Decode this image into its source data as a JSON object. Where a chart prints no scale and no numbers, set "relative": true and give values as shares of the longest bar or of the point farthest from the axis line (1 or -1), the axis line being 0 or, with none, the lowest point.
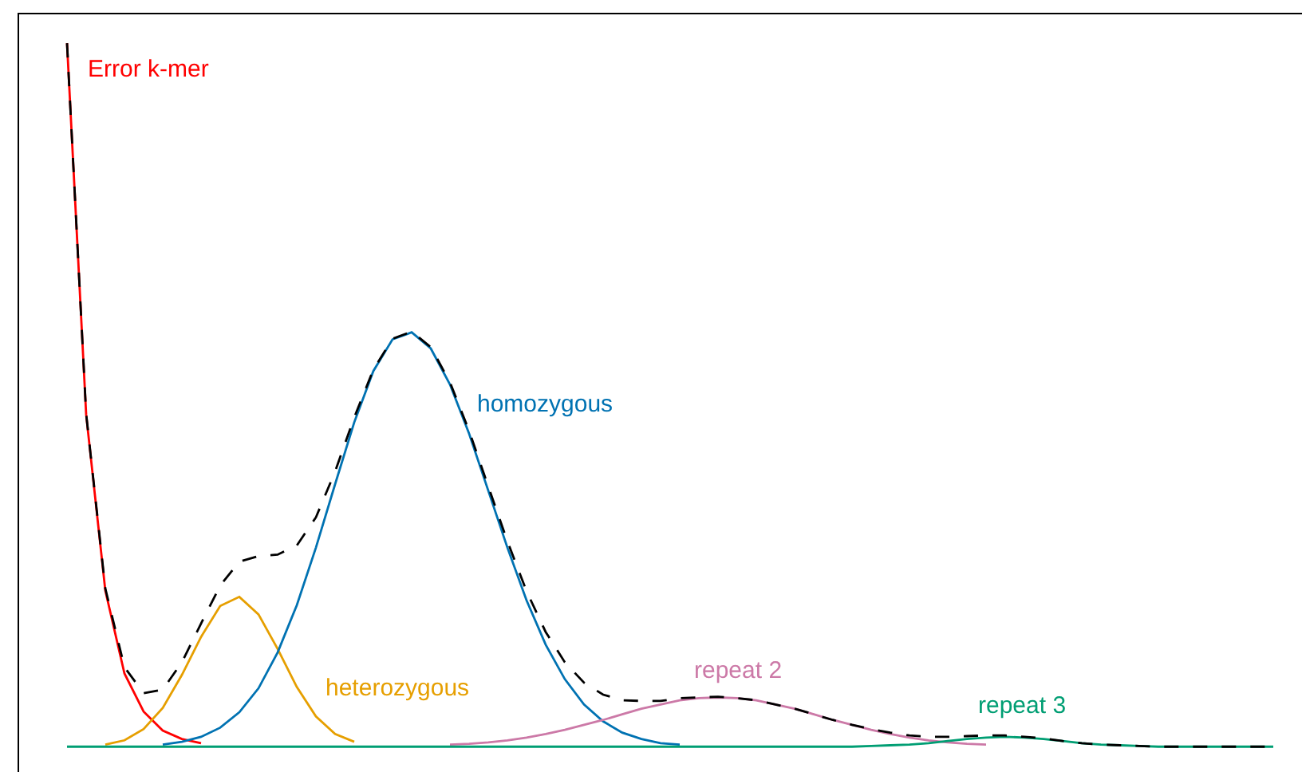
{
  "chart_data": {
    "type": "line",
    "relative": true,
    "legend": false,
    "grid": false,
    "marker": "none",
    "line_style": "solid",
    "categories": [
      null,
      null,
      null,
      null,
      null,
      null,
      null,
      null,
      null,
      null,
      null,
      null,
      null,
      null,
      null,
      null,
      null,
      null,
      null,
      null,
      null,
      null,
      null,
      null,
      null,
      null,
      null,
      null,
      null,
      null,
      null,
      null,
      null,
      null,
      null,
      null,
      null,
      null,
      null,
      null,
      null,
      null,
      null,
      null,
      null,
      null,
      null,
      null,
      null,
      null,
      null,
      null,
      null,
      null,
      null,
      null,
      null,
      null,
      null,
      null,
      null,
      null,
      null,
      null
    ],
    "series": [
      {
        "name": "Error k-mer",
        "color": "#ff0000",
        "values": [
          1.0,
          0.472,
          0.222,
          0.104,
          0.05,
          0.023,
          0.011,
          0.005,
          null,
          null,
          null,
          null,
          null,
          null,
          null,
          null,
          null,
          null,
          null,
          null,
          null,
          null,
          null,
          null,
          null,
          null,
          null,
          null,
          null,
          null,
          null,
          null,
          null,
          null,
          null,
          null,
          null,
          null,
          null,
          null,
          null,
          null,
          null,
          null,
          null,
          null,
          null,
          null,
          null,
          null,
          null,
          null,
          null,
          null,
          null,
          null,
          null,
          null,
          null,
          null,
          null,
          null,
          null,
          null
        ]
      },
      {
        "name": "heterozygous",
        "color": "#e69f00",
        "values": [
          null,
          null,
          0.003,
          0.009,
          0.025,
          0.055,
          0.102,
          0.156,
          0.2,
          0.213,
          0.188,
          0.139,
          0.085,
          0.043,
          0.018,
          0.007,
          null,
          null,
          null,
          null,
          null,
          null,
          null,
          null,
          null,
          null,
          null,
          null,
          null,
          null,
          null,
          null,
          null,
          null,
          null,
          null,
          null,
          null,
          null,
          null,
          null,
          null,
          null,
          null,
          null,
          null,
          null,
          null,
          null,
          null,
          null,
          null,
          null,
          null,
          null,
          null,
          null,
          null,
          null,
          null,
          null,
          null,
          null,
          null
        ]
      },
      {
        "name": "homozygous",
        "color": "#0072b2",
        "values": [
          null,
          null,
          null,
          null,
          null,
          0.003,
          0.007,
          0.014,
          0.027,
          0.049,
          0.083,
          0.134,
          0.201,
          0.283,
          0.373,
          0.461,
          0.534,
          0.579,
          0.589,
          0.566,
          0.515,
          0.445,
          0.364,
          0.283,
          0.208,
          0.145,
          0.096,
          0.06,
          0.036,
          0.02,
          0.011,
          0.005,
          0.003,
          null,
          null,
          null,
          null,
          null,
          null,
          null,
          null,
          null,
          null,
          null,
          null,
          null,
          null,
          null,
          null,
          null,
          null,
          null,
          null,
          null,
          null,
          null,
          null,
          null,
          null,
          null,
          null,
          null,
          null,
          null
        ]
      },
      {
        "name": "repeat 2",
        "color": "#cc79a7",
        "values": [
          null,
          null,
          null,
          null,
          null,
          null,
          null,
          null,
          null,
          null,
          null,
          null,
          null,
          null,
          null,
          null,
          null,
          null,
          null,
          null,
          0.003,
          0.004,
          0.006,
          0.009,
          0.013,
          0.018,
          0.024,
          0.031,
          0.038,
          0.046,
          0.054,
          0.06,
          0.066,
          0.069,
          0.07,
          0.069,
          0.066,
          0.06,
          0.054,
          0.046,
          0.038,
          0.031,
          0.024,
          0.018,
          0.013,
          0.009,
          0.006,
          0.004,
          0.003,
          null,
          null,
          null,
          null,
          null,
          null,
          null,
          null,
          null,
          null,
          null,
          null,
          null,
          null,
          null
        ]
      },
      {
        "name": "repeat 3",
        "color": "#009e73",
        "values": [
          0,
          0,
          0,
          0,
          0,
          0,
          0,
          0,
          0,
          0,
          0,
          0,
          0,
          0,
          0,
          0,
          0,
          0,
          0,
          0,
          0,
          0,
          0,
          0,
          0,
          0,
          0,
          0,
          0,
          0,
          0,
          0,
          0,
          0,
          0,
          0,
          0,
          0,
          0,
          0,
          0,
          0,
          0.001,
          0.002,
          0.003,
          0.005,
          0.008,
          0.011,
          0.013,
          0.014,
          0.013,
          0.011,
          0.008,
          0.005,
          0.003,
          0.002,
          0.001,
          0,
          0,
          0,
          0,
          0,
          0,
          0
        ]
      },
      {
        "color": "#000000",
        "line_style": "dashed",
        "values": [
          1.0,
          0.473,
          0.225,
          0.113,
          0.076,
          0.081,
          0.12,
          0.175,
          0.229,
          0.263,
          0.271,
          0.273,
          0.286,
          0.326,
          0.391,
          0.468,
          0.536,
          0.58,
          0.59,
          0.568,
          0.518,
          0.449,
          0.37,
          0.292,
          0.221,
          0.163,
          0.12,
          0.091,
          0.074,
          0.066,
          0.065,
          0.065,
          0.069,
          0.07,
          0.071,
          0.069,
          0.066,
          0.06,
          0.054,
          0.046,
          0.038,
          0.031,
          0.025,
          0.02,
          0.016,
          0.014,
          0.014,
          0.015,
          0.016,
          0.016,
          0.014,
          0.012,
          0.008,
          0.005,
          0.003,
          0.002,
          0.001,
          0,
          0,
          0,
          0,
          0,
          0,
          0
        ]
      }
    ]
  }
}
